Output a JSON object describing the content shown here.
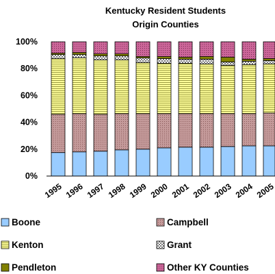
{
  "chart_data": {
    "type": "bar",
    "stacked": true,
    "percent": true,
    "title": [
      "Kentucky Resident Students",
      "Origin Counties"
    ],
    "categories": [
      "1995",
      "1996",
      "1997",
      "1998",
      "1999",
      "2000",
      "2001",
      "2002",
      "2003",
      "2004",
      "2005"
    ],
    "y_ticks": [
      "0%",
      "20%",
      "40%",
      "60%",
      "80%",
      "100%"
    ],
    "ylim": [
      0,
      100
    ],
    "grid": false,
    "legend_position": "bottom",
    "series": [
      {
        "name": "Boone",
        "color": "#99ccff",
        "pattern": "solid",
        "values": [
          17.5,
          18.0,
          18.5,
          19.5,
          20.0,
          21.0,
          21.5,
          21.5,
          22.0,
          22.5,
          22.5
        ]
      },
      {
        "name": "Campbell",
        "color": "#c49a9a",
        "pattern": "dots",
        "values": [
          28.5,
          28.5,
          27.5,
          27.0,
          26.5,
          25.5,
          25.0,
          25.0,
          24.5,
          24.0,
          24.5
        ]
      },
      {
        "name": "Kenton",
        "color": "#ffff99",
        "pattern": "hlines",
        "values": [
          41.5,
          41.5,
          40.5,
          40.0,
          38.0,
          37.5,
          37.5,
          37.0,
          36.0,
          36.5,
          36.5
        ]
      },
      {
        "name": "Grant",
        "color": "#ffffff",
        "pattern": "check",
        "values": [
          3.0,
          2.5,
          3.0,
          3.0,
          3.5,
          3.5,
          3.0,
          3.5,
          2.5,
          2.5,
          2.5
        ]
      },
      {
        "name": "Pendleton",
        "color": "#808000",
        "pattern": "solid",
        "values": [
          1.0,
          1.5,
          1.5,
          1.5,
          1.0,
          1.5,
          1.5,
          2.0,
          3.5,
          1.5,
          1.5
        ]
      },
      {
        "name": "Other KY Counties",
        "color": "#cc6699",
        "pattern": "dots",
        "values": [
          8.5,
          8.0,
          9.0,
          9.0,
          11.0,
          11.0,
          11.5,
          11.0,
          11.5,
          13.0,
          12.5
        ]
      }
    ]
  }
}
